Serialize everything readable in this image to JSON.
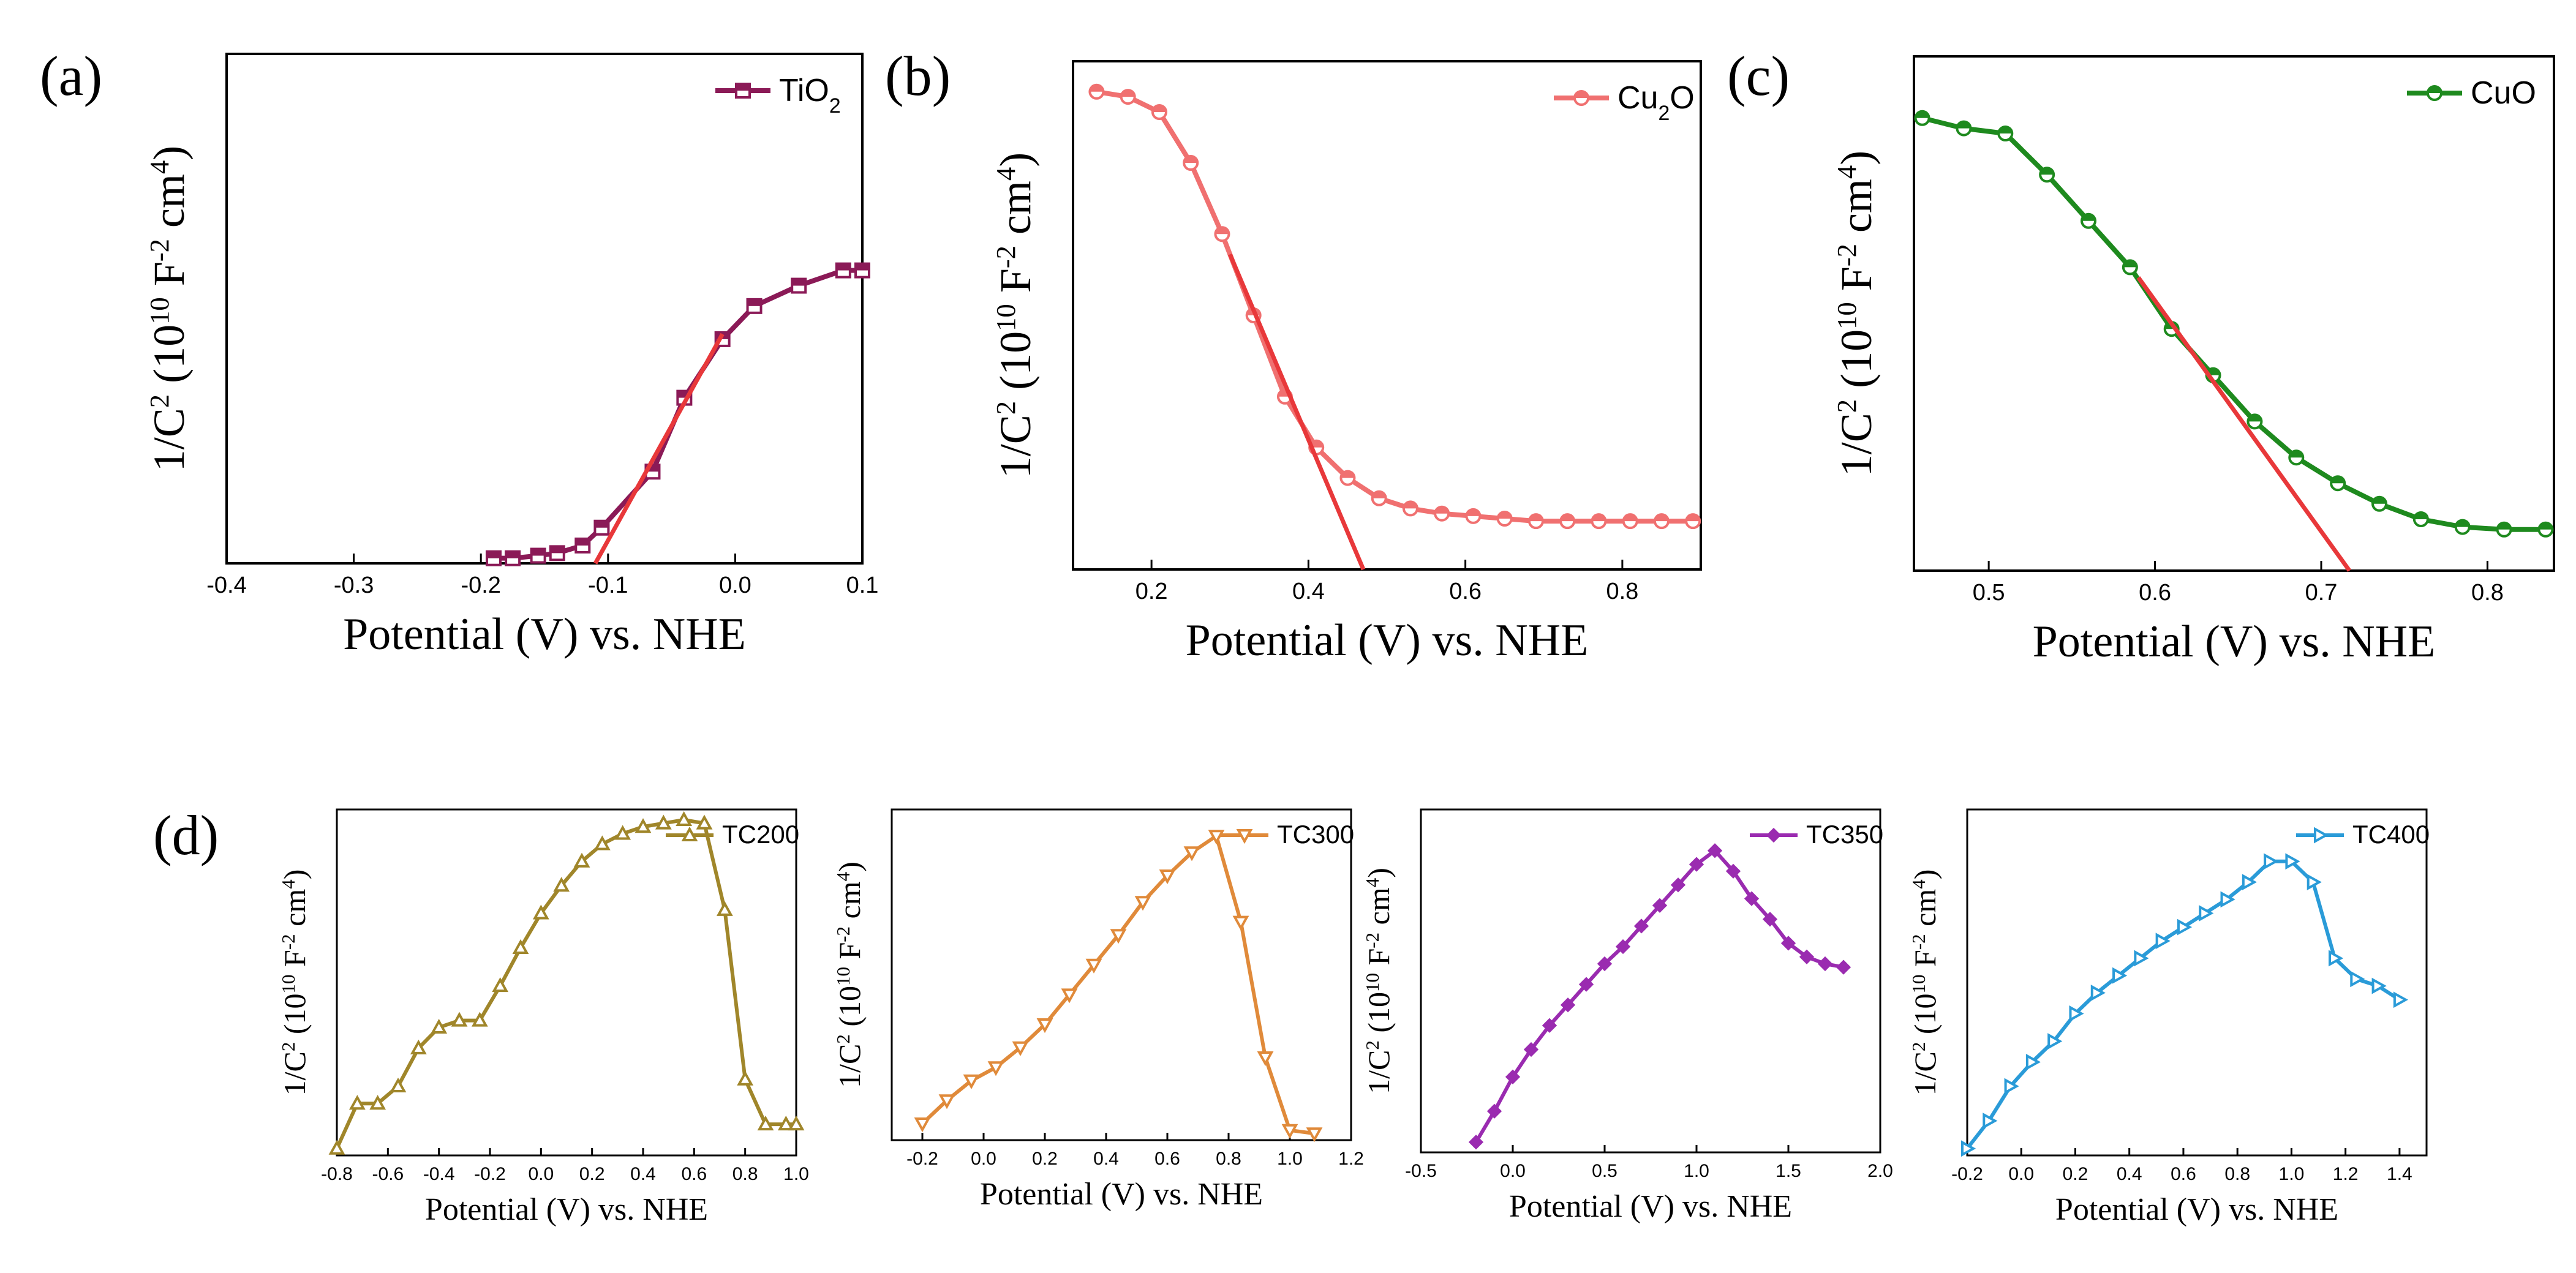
{
  "chart_data": [
    {
      "panel_label": "(a)",
      "type": "line",
      "title": "",
      "xlabel": "Potential (V) vs. NHE",
      "ylabel_main": "1/C",
      "ylabel_rest": " (10",
      "ylabel_units": " F",
      "ylabel_cm": " cm",
      "ylabel_close": ")",
      "sup_two": "2",
      "sup_ten": "10",
      "sup_neg_two": "-2",
      "sup_four": "4",
      "xlim": [
        -0.4,
        0.1
      ],
      "xticks": [
        -0.4,
        -0.3,
        -0.2,
        -0.1,
        0.0,
        0.1
      ],
      "xtick_labels": [
        "-0.4",
        "-0.3",
        "-0.2",
        "-0.1",
        "0.0",
        "0.1"
      ],
      "ylim": [
        0,
        1
      ],
      "yticks_shown": false,
      "grid": false,
      "legend_position": "top-right",
      "series": [
        {
          "name": "TiO",
          "name_sub": "2",
          "marker": "square",
          "color": "#8B1A57",
          "x": [
            -0.19,
            -0.175,
            -0.155,
            -0.14,
            -0.12,
            -0.105,
            -0.065,
            -0.04,
            -0.01,
            0.015,
            0.05,
            0.085,
            0.1
          ],
          "y": [
            0.01,
            0.01,
            0.015,
            0.02,
            0.035,
            0.07,
            0.18,
            0.325,
            0.44,
            0.505,
            0.545,
            0.575,
            0.575
          ]
        }
      ],
      "fit_line": {
        "color": "#E8383A",
        "x": [
          -0.11,
          -0.01
        ],
        "y": [
          0.0,
          0.45
        ]
      }
    },
    {
      "panel_label": "(b)",
      "type": "line",
      "title": "",
      "xlabel": "Potential (V) vs. NHE",
      "ylabel_main": "1/C",
      "ylabel_rest": " (10",
      "ylabel_units": " F",
      "ylabel_cm": " cm",
      "ylabel_close": ")",
      "sup_two": "2",
      "sup_ten": "10",
      "sup_neg_two": "-2",
      "sup_four": "4",
      "xlim": [
        0.1,
        0.9
      ],
      "xticks": [
        0.2,
        0.4,
        0.6,
        0.8
      ],
      "xtick_labels": [
        "0.2",
        "0.4",
        "0.6",
        "0.8"
      ],
      "ylim": [
        0,
        1
      ],
      "yticks_shown": false,
      "grid": false,
      "legend_position": "top-right",
      "series": [
        {
          "name": "Cu",
          "name_sub": "2",
          "name_after": "O",
          "marker": "circle-half",
          "color": "#F07070",
          "x": [
            0.13,
            0.17,
            0.21,
            0.25,
            0.29,
            0.33,
            0.37,
            0.41,
            0.45,
            0.49,
            0.53,
            0.57,
            0.61,
            0.65,
            0.69,
            0.73,
            0.77,
            0.81,
            0.85,
            0.89
          ],
          "y": [
            0.94,
            0.93,
            0.9,
            0.8,
            0.66,
            0.5,
            0.34,
            0.24,
            0.18,
            0.14,
            0.12,
            0.11,
            0.105,
            0.1,
            0.095,
            0.095,
            0.095,
            0.095,
            0.095,
            0.095
          ]
        }
      ],
      "fit_line": {
        "color": "#E8383A",
        "x": [
          0.3,
          0.47
        ],
        "y": [
          0.62,
          0.0
        ]
      }
    },
    {
      "panel_label": "(c)",
      "type": "line",
      "title": "",
      "xlabel": "Potential (V) vs. NHE",
      "ylabel_main": "1/C",
      "ylabel_rest": " (10",
      "ylabel_units": " F",
      "ylabel_cm": " cm",
      "ylabel_close": ")",
      "sup_two": "2",
      "sup_ten": "10",
      "sup_neg_two": "-2",
      "sup_four": "4",
      "xlim": [
        0.455,
        0.84
      ],
      "xticks": [
        0.5,
        0.6,
        0.7,
        0.8
      ],
      "xtick_labels": [
        "0.5",
        "0.6",
        "0.7",
        "0.8"
      ],
      "ylim": [
        0,
        1
      ],
      "yticks_shown": false,
      "grid": false,
      "legend_position": "top-right",
      "series": [
        {
          "name": "CuO",
          "marker": "circle-half",
          "color": "#1E8A1E",
          "x": [
            0.46,
            0.485,
            0.51,
            0.535,
            0.56,
            0.585,
            0.61,
            0.635,
            0.66,
            0.685,
            0.71,
            0.735,
            0.76,
            0.785,
            0.81,
            0.835
          ],
          "y": [
            0.88,
            0.86,
            0.85,
            0.77,
            0.68,
            0.59,
            0.47,
            0.38,
            0.29,
            0.22,
            0.17,
            0.13,
            0.1,
            0.085,
            0.08,
            0.08
          ]
        }
      ],
      "fit_line": {
        "color": "#E8383A",
        "x": [
          0.59,
          0.717
        ],
        "y": [
          0.57,
          0.0
        ]
      }
    },
    {
      "panel_label": "(d)",
      "type": "line",
      "title": "",
      "xlabel": "Potential (V) vs. NHE",
      "ylabel_main": "1/C",
      "ylabel_rest": " (10",
      "ylabel_units": " F",
      "ylabel_cm": " cm",
      "ylabel_close": ")",
      "sup_two": "2",
      "sup_ten": "10",
      "sup_neg_two": "-2",
      "sup_four": "4",
      "xlim": [
        -0.8,
        1.0
      ],
      "xticks": [
        -0.8,
        -0.6,
        -0.4,
        -0.2,
        0.0,
        0.2,
        0.4,
        0.6,
        0.8,
        1.0
      ],
      "xtick_labels": [
        "-0.8",
        "-0.6",
        "-0.4",
        "-0.2",
        "0.0",
        "0.2",
        "0.4",
        "0.6",
        "0.8",
        "1.0"
      ],
      "ylim": [
        0,
        1
      ],
      "yticks_shown": false,
      "grid": false,
      "legend_position": "top-right",
      "series": [
        {
          "name": "TC200",
          "marker": "triangle-up",
          "color": "#A0862A",
          "x": [
            -0.8,
            -0.72,
            -0.64,
            -0.56,
            -0.48,
            -0.4,
            -0.32,
            -0.24,
            -0.16,
            -0.08,
            0.0,
            0.08,
            0.16,
            0.24,
            0.32,
            0.4,
            0.48,
            0.56,
            0.64,
            0.72,
            0.8,
            0.88,
            0.96,
            1.0
          ],
          "y": [
            0.02,
            0.15,
            0.15,
            0.2,
            0.31,
            0.37,
            0.39,
            0.39,
            0.49,
            0.6,
            0.7,
            0.78,
            0.85,
            0.9,
            0.93,
            0.95,
            0.96,
            0.97,
            0.96,
            0.71,
            0.22,
            0.09,
            0.09,
            0.09
          ]
        }
      ]
    },
    {
      "panel_label": "",
      "type": "line",
      "title": "",
      "xlabel": "Potential (V) vs. NHE",
      "ylabel_main": "1/C",
      "ylabel_rest": " (10",
      "ylabel_units": " F",
      "ylabel_cm": " cm",
      "ylabel_close": ")",
      "sup_two": "2",
      "sup_ten": "10",
      "sup_neg_two": "-2",
      "sup_four": "4",
      "xlim": [
        -0.3,
        1.2
      ],
      "xticks": [
        -0.2,
        0.0,
        0.2,
        0.4,
        0.6,
        0.8,
        1.0,
        1.2
      ],
      "xtick_labels": [
        "-0.2",
        "0.0",
        "0.2",
        "0.4",
        "0.6",
        "0.8",
        "1.0",
        "1.2"
      ],
      "ylim": [
        0,
        1
      ],
      "yticks_shown": false,
      "grid": false,
      "legend_position": "top-right",
      "series": [
        {
          "name": "TC300",
          "marker": "triangle-down",
          "color": "#E08A3A",
          "x": [
            -0.2,
            -0.12,
            -0.04,
            0.04,
            0.12,
            0.2,
            0.28,
            0.36,
            0.44,
            0.52,
            0.6,
            0.68,
            0.76,
            0.84,
            0.92,
            1.0,
            1.08
          ],
          "y": [
            0.05,
            0.12,
            0.18,
            0.22,
            0.28,
            0.35,
            0.44,
            0.53,
            0.62,
            0.72,
            0.8,
            0.87,
            0.92,
            0.66,
            0.25,
            0.03,
            0.02
          ]
        }
      ]
    },
    {
      "panel_label": "",
      "type": "line",
      "title": "",
      "xlabel": "Potential (V) vs. NHE",
      "ylabel_main": "1/C",
      "ylabel_rest": " (10",
      "ylabel_units": " F",
      "ylabel_cm": " cm",
      "ylabel_close": ")",
      "sup_two": "2",
      "sup_ten": "10",
      "sup_neg_two": "-2",
      "sup_four": "4",
      "xlim": [
        -0.5,
        2.0
      ],
      "xticks": [
        -0.5,
        0.0,
        0.5,
        1.0,
        1.5,
        2.0
      ],
      "xtick_labels": [
        "-0.5",
        "0.0",
        "0.5",
        "1.0",
        "1.5",
        "2.0"
      ],
      "ylim": [
        0,
        1
      ],
      "yticks_shown": false,
      "grid": false,
      "legend_position": "top-right",
      "series": [
        {
          "name": "TC350",
          "marker": "diamond",
          "color": "#9A2BB0",
          "x": [
            -0.2,
            -0.1,
            0.0,
            0.1,
            0.2,
            0.3,
            0.4,
            0.5,
            0.6,
            0.7,
            0.8,
            0.9,
            1.0,
            1.1,
            1.2,
            1.3,
            1.4,
            1.5,
            1.6,
            1.7,
            1.8
          ],
          "y": [
            0.03,
            0.12,
            0.22,
            0.3,
            0.37,
            0.43,
            0.49,
            0.55,
            0.6,
            0.66,
            0.72,
            0.78,
            0.84,
            0.88,
            0.82,
            0.74,
            0.68,
            0.61,
            0.57,
            0.55,
            0.54
          ]
        }
      ]
    },
    {
      "panel_label": "",
      "type": "line",
      "title": "",
      "xlabel": "Potential (V) vs. NHE",
      "ylabel_main": "1/C",
      "ylabel_rest": " (10",
      "ylabel_units": " F",
      "ylabel_cm": " cm",
      "ylabel_close": ")",
      "sup_two": "2",
      "sup_ten": "10",
      "sup_neg_two": "-2",
      "sup_four": "4",
      "xlim": [
        -0.2,
        1.5
      ],
      "xticks": [
        -0.2,
        0.0,
        0.2,
        0.4,
        0.6,
        0.8,
        1.0,
        1.2,
        1.4
      ],
      "xtick_labels": [
        "-0.2",
        "0.0",
        "0.2",
        "0.4",
        "0.6",
        "0.8",
        "1.0",
        "1.2",
        "1.4"
      ],
      "ylim": [
        0,
        1
      ],
      "yticks_shown": false,
      "grid": false,
      "legend_position": "top-right",
      "series": [
        {
          "name": "TC400",
          "marker": "triangle-right",
          "color": "#2A9BD8",
          "x": [
            -0.2,
            -0.12,
            -0.04,
            0.04,
            0.12,
            0.2,
            0.28,
            0.36,
            0.44,
            0.52,
            0.6,
            0.68,
            0.76,
            0.84,
            0.92,
            1.0,
            1.08,
            1.16,
            1.24,
            1.32,
            1.4
          ],
          "y": [
            0.02,
            0.1,
            0.2,
            0.27,
            0.33,
            0.41,
            0.47,
            0.52,
            0.57,
            0.62,
            0.66,
            0.7,
            0.74,
            0.79,
            0.85,
            0.85,
            0.79,
            0.57,
            0.51,
            0.49,
            0.45
          ]
        }
      ]
    }
  ]
}
